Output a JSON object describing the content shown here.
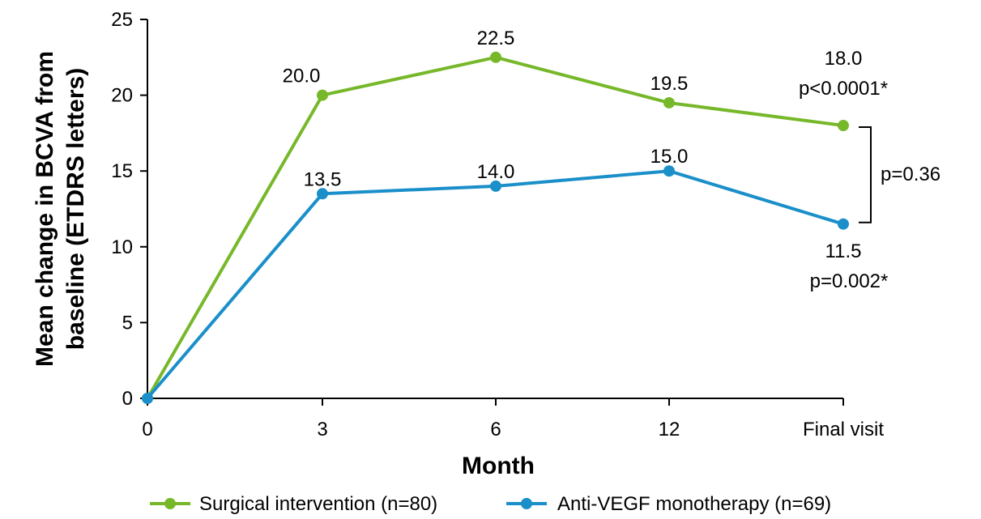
{
  "chart_data": {
    "type": "line",
    "title": "",
    "xlabel": "Month",
    "ylabel_line1": "Mean change in BCVA from",
    "ylabel_line2": "baseline (ETDRS letters)",
    "categories": [
      "0",
      "3",
      "6",
      "12",
      "Final visit"
    ],
    "ylim": [
      0,
      25
    ],
    "yticks": [
      "0",
      "5",
      "10",
      "15",
      "20",
      "25"
    ],
    "grid": false,
    "legend_position": "bottom",
    "series": [
      {
        "name": "Surgical intervention (n=80)",
        "color": "#77b82a",
        "values": [
          0,
          20.0,
          22.5,
          19.5,
          18.0
        ],
        "labels": [
          "",
          "20.0",
          "22.5",
          "19.5",
          "18.0"
        ],
        "final_p": "p<0.0001*"
      },
      {
        "name": "Anti-VEGF monotherapy (n=69)",
        "color": "#1a8fc9",
        "values": [
          0,
          13.5,
          14.0,
          15.0,
          11.5
        ],
        "labels": [
          "",
          "13.5",
          "14.0",
          "15.0",
          "11.5"
        ],
        "final_p": "p=0.002*"
      }
    ],
    "comparison_p": "p=0.36"
  }
}
